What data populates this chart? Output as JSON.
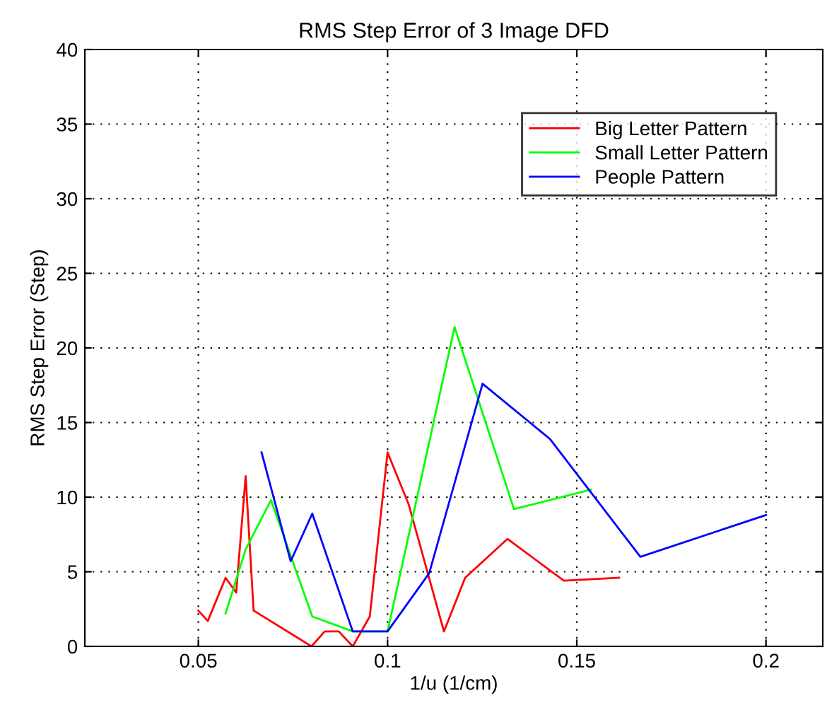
{
  "chart_data": {
    "type": "line",
    "title": "RMS Step Error of 3 Image DFD",
    "xlabel": "1/u (1/cm)",
    "ylabel": "RMS Step Error (Step)",
    "xlim": [
      0.02,
      0.215
    ],
    "xticks": [
      0.05,
      0.1,
      0.15,
      0.2
    ],
    "ylim": [
      0,
      40
    ],
    "yticks": [
      0,
      5,
      10,
      15,
      20,
      25,
      30,
      35,
      40
    ],
    "grid": true,
    "legend": "top right",
    "marker": "none",
    "line_style": "solid",
    "series": [
      {
        "name": "Big Letter Pattern",
        "color": "#ff0000",
        "x": [
          0.05,
          0.0525,
          0.0572,
          0.06,
          0.0625,
          0.0646,
          0.0799,
          0.0834,
          0.0871,
          0.0908,
          0.0953,
          0.1,
          0.1056,
          0.1149,
          0.1205,
          0.1317,
          0.1466,
          0.1612
        ],
        "values": [
          2.4,
          1.7,
          4.6,
          3.6,
          11.4,
          2.4,
          0,
          1.0,
          1.0,
          0,
          2.0,
          13.0,
          9.5,
          1.0,
          4.6,
          7.2,
          4.4,
          4.6
        ]
      },
      {
        "name": "Small Letter Pattern",
        "color": "#00ff00",
        "x": [
          0.0572,
          0.0625,
          0.0692,
          0.0801,
          0.0908,
          0.1,
          0.1177,
          0.1334,
          0.1537
        ],
        "values": [
          2.2,
          6.5,
          9.8,
          2.0,
          1.0,
          1.0,
          21.4,
          9.2,
          10.5
        ]
      },
      {
        "name": "People Pattern",
        "color": "#0000ff",
        "x": [
          0.0667,
          0.0744,
          0.0801,
          0.0908,
          0.1,
          0.111,
          0.1251,
          0.1429,
          0.1668,
          0.2
        ],
        "values": [
          13.0,
          5.7,
          8.9,
          1.0,
          1.0,
          4.9,
          17.6,
          13.9,
          6.0,
          8.8
        ]
      }
    ]
  }
}
